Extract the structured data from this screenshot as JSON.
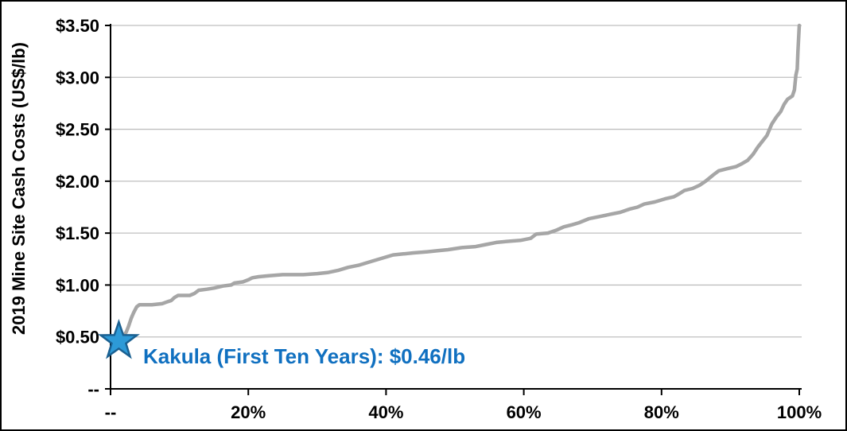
{
  "chart_data": {
    "type": "line",
    "title": "",
    "xlabel": "",
    "ylabel": "2019 Mine Site Cash Costs (US$/lb)",
    "xlim": [
      0,
      100
    ],
    "ylim": [
      0,
      3.5
    ],
    "grid": "horizontal",
    "legend_position": "none",
    "x_ticks": [
      {
        "value": 0,
        "label": "--"
      },
      {
        "value": 20,
        "label": "20%"
      },
      {
        "value": 40,
        "label": "40%"
      },
      {
        "value": 60,
        "label": "60%"
      },
      {
        "value": 80,
        "label": "80%"
      },
      {
        "value": 100,
        "label": "100%"
      }
    ],
    "y_ticks": [
      {
        "value": 0,
        "label": "--"
      },
      {
        "value": 0.5,
        "label": "$0.50"
      },
      {
        "value": 1.0,
        "label": "$1.00"
      },
      {
        "value": 1.5,
        "label": "$1.50"
      },
      {
        "value": 2.0,
        "label": "$2.00"
      },
      {
        "value": 2.5,
        "label": "$2.50"
      },
      {
        "value": 3.0,
        "label": "$3.00"
      },
      {
        "value": 3.5,
        "label": "$3.50"
      }
    ],
    "colors": {
      "curve": "#A6A6A6",
      "grid": "#BFBFBF",
      "axis": "#000000",
      "text": "#000000"
    },
    "series": [
      {
        "name": "2019 mine site cash cost curve (cumulative percentile vs US$/lb)",
        "color": "#A6A6A6",
        "points": [
          [
            0.9,
            0.44
          ],
          [
            1.2,
            0.46
          ],
          [
            1.8,
            0.5
          ],
          [
            2.3,
            0.55
          ],
          [
            2.6,
            0.6
          ],
          [
            3.0,
            0.68
          ],
          [
            3.4,
            0.74
          ],
          [
            3.8,
            0.79
          ],
          [
            4.2,
            0.81
          ],
          [
            6.0,
            0.81
          ],
          [
            7.5,
            0.82
          ],
          [
            8.3,
            0.84
          ],
          [
            8.8,
            0.85
          ],
          [
            9.3,
            0.88
          ],
          [
            9.8,
            0.9
          ],
          [
            11.5,
            0.9
          ],
          [
            12.2,
            0.92
          ],
          [
            12.8,
            0.95
          ],
          [
            14.0,
            0.96
          ],
          [
            15.0,
            0.97
          ],
          [
            16.3,
            0.99
          ],
          [
            17.5,
            1.0
          ],
          [
            18.0,
            1.02
          ],
          [
            19.2,
            1.03
          ],
          [
            20.0,
            1.05
          ],
          [
            20.6,
            1.07
          ],
          [
            21.5,
            1.08
          ],
          [
            23.0,
            1.09
          ],
          [
            25.0,
            1.1
          ],
          [
            28.0,
            1.1
          ],
          [
            30.0,
            1.11
          ],
          [
            31.5,
            1.12
          ],
          [
            33.0,
            1.14
          ],
          [
            34.5,
            1.17
          ],
          [
            36.0,
            1.19
          ],
          [
            37.0,
            1.21
          ],
          [
            38.0,
            1.23
          ],
          [
            39.5,
            1.26
          ],
          [
            41.0,
            1.29
          ],
          [
            42.5,
            1.3
          ],
          [
            44.0,
            1.31
          ],
          [
            46.0,
            1.32
          ],
          [
            47.5,
            1.33
          ],
          [
            49.0,
            1.34
          ],
          [
            51.0,
            1.36
          ],
          [
            53.0,
            1.37
          ],
          [
            54.5,
            1.39
          ],
          [
            56.0,
            1.41
          ],
          [
            57.5,
            1.42
          ],
          [
            59.5,
            1.43
          ],
          [
            61.0,
            1.45
          ],
          [
            61.8,
            1.49
          ],
          [
            63.5,
            1.5
          ],
          [
            64.8,
            1.53
          ],
          [
            65.8,
            1.56
          ],
          [
            67.0,
            1.58
          ],
          [
            68.0,
            1.6
          ],
          [
            69.5,
            1.64
          ],
          [
            71.0,
            1.66
          ],
          [
            72.5,
            1.68
          ],
          [
            74.0,
            1.7
          ],
          [
            75.3,
            1.73
          ],
          [
            76.5,
            1.75
          ],
          [
            77.5,
            1.78
          ],
          [
            79.0,
            1.8
          ],
          [
            80.5,
            1.83
          ],
          [
            81.8,
            1.85
          ],
          [
            82.6,
            1.88
          ],
          [
            83.3,
            1.91
          ],
          [
            84.5,
            1.93
          ],
          [
            85.5,
            1.96
          ],
          [
            86.4,
            2.0
          ],
          [
            87.5,
            2.06
          ],
          [
            88.3,
            2.1
          ],
          [
            89.5,
            2.12
          ],
          [
            90.8,
            2.14
          ],
          [
            91.7,
            2.17
          ],
          [
            92.5,
            2.2
          ],
          [
            93.3,
            2.26
          ],
          [
            94.0,
            2.33
          ],
          [
            94.6,
            2.38
          ],
          [
            95.3,
            2.44
          ],
          [
            96.0,
            2.55
          ],
          [
            96.7,
            2.62
          ],
          [
            97.3,
            2.67
          ],
          [
            97.8,
            2.74
          ],
          [
            98.3,
            2.79
          ],
          [
            99.0,
            2.82
          ],
          [
            99.3,
            2.88
          ],
          [
            99.5,
            3.02
          ],
          [
            99.7,
            3.08
          ],
          [
            99.8,
            3.25
          ],
          [
            100,
            3.5
          ]
        ]
      }
    ],
    "marker": {
      "label": "Kakula (First Ten Years): $0.46/lb",
      "x": 1.2,
      "y": 0.46,
      "shape": "star-5",
      "fill": "#2D9AD7",
      "stroke": "#1A6091",
      "label_color": "#1070C0"
    }
  }
}
